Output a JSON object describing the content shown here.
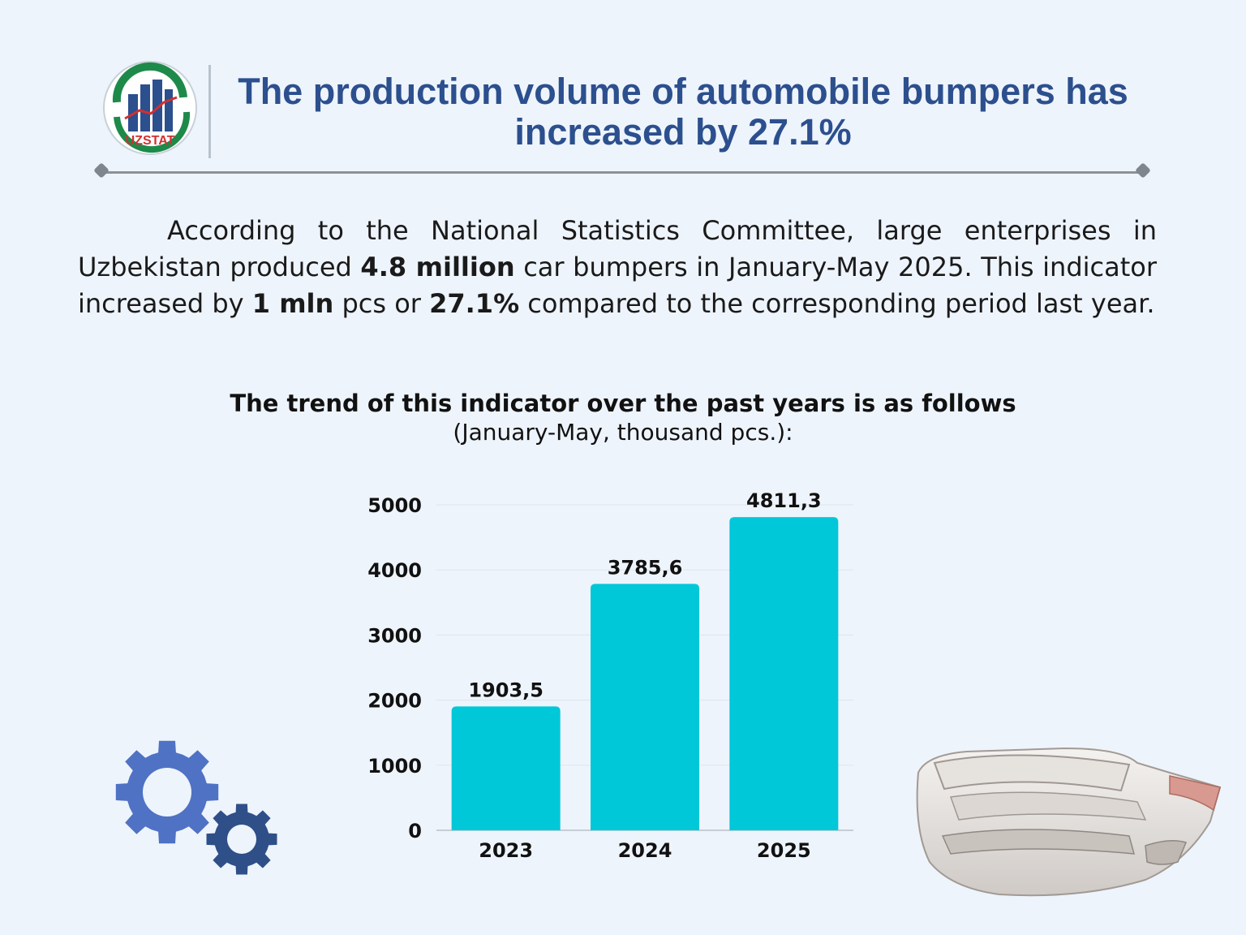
{
  "header": {
    "logo_text": "UZSTAT",
    "title_line1": "The production volume of automobile bumpers has",
    "title_line2": "increased by 27.1%"
  },
  "paragraph": {
    "seg1": "According to the National Statistics Committee, large enterprises in Uzbekistan produced ",
    "bold1": "4.8 million",
    "seg2": " car bumpers in January-May 2025. This indicator increased by ",
    "bold2": "1 mln",
    "seg3": " pcs or ",
    "bold3": "27.1%",
    "seg4": " compared to the corresponding period last year."
  },
  "colors": {
    "bar": "#00c8d8",
    "title": "#2c4f8e",
    "gear_large": "#4f72c4",
    "gear_small": "#2f4f88"
  },
  "icons": [
    "uzstat-logo-icon",
    "gears-icon",
    "car-bumper-icon"
  ],
  "chart_data": {
    "type": "bar",
    "title": "The trend of this indicator over the past years is as follows",
    "subtitle": "(January-May, thousand pcs.):",
    "categories": [
      "2023",
      "2024",
      "2025"
    ],
    "values": [
      1903.5,
      3785.6,
      4811.3
    ],
    "value_labels": [
      "1903,5",
      "3785,6",
      "4811,3"
    ],
    "y_ticks": [
      "0",
      "1000",
      "2000",
      "3000",
      "4000",
      "5000"
    ],
    "ylim": [
      0,
      5000
    ],
    "grid": true,
    "legend": "none"
  }
}
